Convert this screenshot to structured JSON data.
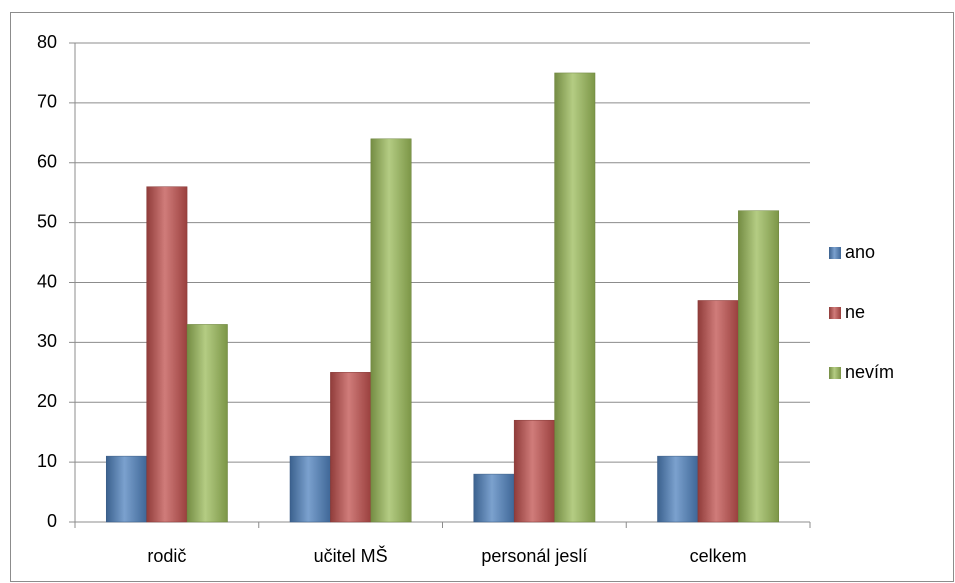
{
  "chart_data": {
    "type": "bar",
    "categories": [
      "rodič",
      "učitel MŠ",
      "personál jeslí",
      "celkem"
    ],
    "series": [
      {
        "name": "ano",
        "color": "#4f81bd",
        "values": [
          11,
          11,
          8,
          11
        ]
      },
      {
        "name": "ne",
        "color": "#c0504d",
        "values": [
          56,
          25,
          17,
          37
        ]
      },
      {
        "name": "nevím",
        "color": "#9bbb59",
        "values": [
          33,
          64,
          75,
          52
        ]
      }
    ],
    "ylim": [
      0,
      80
    ],
    "yticks": [
      0,
      10,
      20,
      30,
      40,
      50,
      60,
      70,
      80
    ],
    "grid": true,
    "legend": "right"
  }
}
